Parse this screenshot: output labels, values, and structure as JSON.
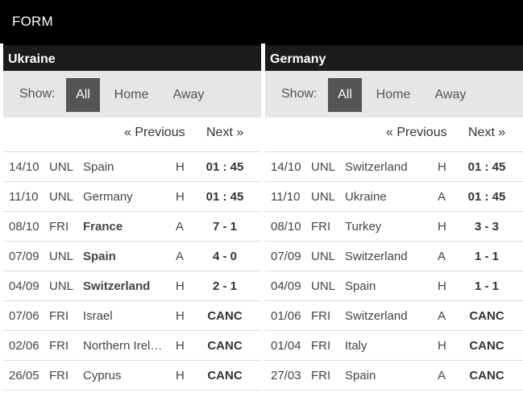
{
  "header": {
    "title": "FORM"
  },
  "panels": [
    {
      "team": "Ukraine",
      "filter": {
        "show_label": "Show:",
        "all": "All",
        "home": "Home",
        "away": "Away"
      },
      "pager": {
        "prev": "« Previous",
        "next": "Next »"
      },
      "matches": [
        {
          "date": "14/10",
          "comp": "UNL",
          "opponent": "Spain",
          "bold": false,
          "ha": "H",
          "result": "01 : 45"
        },
        {
          "date": "11/10",
          "comp": "UNL",
          "opponent": "Germany",
          "bold": false,
          "ha": "H",
          "result": "01 : 45"
        },
        {
          "date": "08/10",
          "comp": "FRI",
          "opponent": "France",
          "bold": true,
          "ha": "A",
          "result": "7 - 1"
        },
        {
          "date": "07/09",
          "comp": "UNL",
          "opponent": "Spain",
          "bold": true,
          "ha": "A",
          "result": "4 - 0"
        },
        {
          "date": "04/09",
          "comp": "UNL",
          "opponent": "Switzerland",
          "bold": true,
          "ha": "H",
          "result": "2 - 1"
        },
        {
          "date": "07/06",
          "comp": "FRI",
          "opponent": "Israel",
          "bold": false,
          "ha": "H",
          "result": "CANC"
        },
        {
          "date": "02/06",
          "comp": "FRI",
          "opponent": "Northern Ireland",
          "bold": false,
          "ha": "H",
          "result": "CANC"
        },
        {
          "date": "26/05",
          "comp": "FRI",
          "opponent": "Cyprus",
          "bold": false,
          "ha": "H",
          "result": "CANC"
        }
      ]
    },
    {
      "team": "Germany",
      "filter": {
        "show_label": "Show:",
        "all": "All",
        "home": "Home",
        "away": "Away"
      },
      "pager": {
        "prev": "« Previous",
        "next": "Next »"
      },
      "matches": [
        {
          "date": "14/10",
          "comp": "UNL",
          "opponent": "Switzerland",
          "bold": false,
          "ha": "H",
          "result": "01 : 45"
        },
        {
          "date": "11/10",
          "comp": "UNL",
          "opponent": "Ukraine",
          "bold": false,
          "ha": "A",
          "result": "01 : 45"
        },
        {
          "date": "08/10",
          "comp": "FRI",
          "opponent": "Turkey",
          "bold": false,
          "ha": "H",
          "result": "3 - 3"
        },
        {
          "date": "07/09",
          "comp": "UNL",
          "opponent": "Switzerland",
          "bold": false,
          "ha": "A",
          "result": "1 - 1"
        },
        {
          "date": "04/09",
          "comp": "UNL",
          "opponent": "Spain",
          "bold": false,
          "ha": "H",
          "result": "1 - 1"
        },
        {
          "date": "01/06",
          "comp": "FRI",
          "opponent": "Switzerland",
          "bold": false,
          "ha": "A",
          "result": "CANC"
        },
        {
          "date": "01/04",
          "comp": "FRI",
          "opponent": "Italy",
          "bold": false,
          "ha": "H",
          "result": "CANC"
        },
        {
          "date": "27/03",
          "comp": "FRI",
          "opponent": "Spain",
          "bold": false,
          "ha": "A",
          "result": "CANC"
        }
      ]
    }
  ]
}
